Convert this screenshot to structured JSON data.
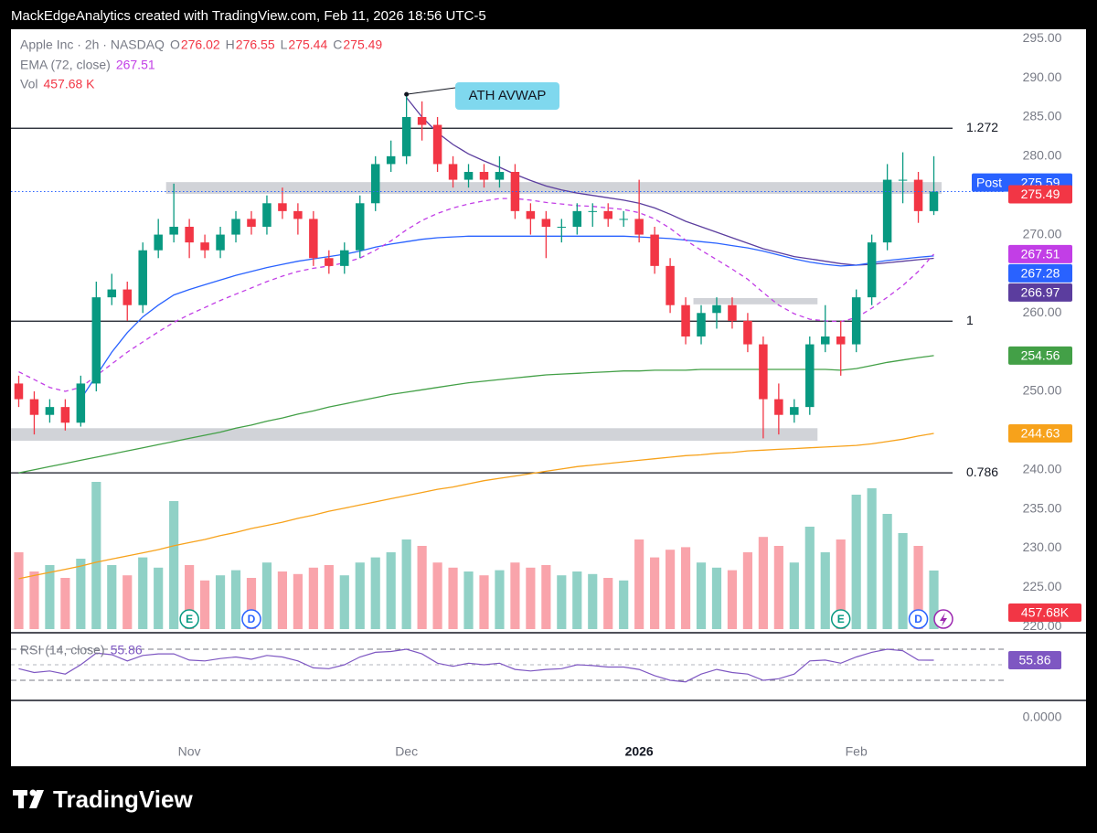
{
  "header": {
    "credit": "MackEdgeAnalytics created with TradingView.com, Feb 11, 2026 18:56 UTC-5"
  },
  "footer": {
    "brand": "TradingView"
  },
  "chart_data": {
    "type": "candlestick",
    "symbol": "Apple Inc · 2h · NASDAQ",
    "ohlc_legend": [
      {
        "name": "O",
        "value": 276.02
      },
      {
        "name": "H",
        "value": 276.55
      },
      {
        "name": "L",
        "value": 275.44
      },
      {
        "name": "C",
        "value": 275.49
      }
    ],
    "categories": [
      null,
      null,
      null,
      null,
      null,
      null,
      null,
      null,
      null,
      null,
      null,
      "Nov",
      null,
      null,
      null,
      null,
      null,
      null,
      null,
      null,
      null,
      null,
      null,
      null,
      null,
      "Dec",
      null,
      null,
      null,
      null,
      null,
      null,
      null,
      null,
      null,
      null,
      null,
      null,
      null,
      null,
      "2026",
      null,
      null,
      null,
      null,
      null,
      null,
      null,
      null,
      null,
      null,
      null,
      null,
      null,
      "Feb",
      null,
      null,
      null,
      null,
      null
    ],
    "open": [
      251,
      249,
      247,
      248,
      246,
      251,
      262,
      263,
      261,
      268,
      270,
      271,
      269,
      268,
      270,
      272,
      271,
      274,
      273,
      272,
      267,
      266,
      268,
      274,
      279,
      280,
      285,
      284,
      279,
      277,
      278,
      277,
      278,
      273,
      272,
      271,
      271,
      273,
      273,
      272,
      272,
      270,
      266,
      261,
      257,
      260,
      261,
      259,
      256,
      249,
      247,
      248,
      256,
      257,
      256,
      262,
      269,
      277,
      277,
      273
    ],
    "high": [
      252,
      250,
      249,
      249,
      252,
      264,
      265,
      264,
      269,
      272,
      276.5,
      272,
      270,
      271,
      273,
      273,
      275,
      276,
      274,
      273,
      268,
      269,
      275,
      280,
      282,
      287.9,
      287,
      285,
      280,
      279,
      279,
      280,
      279,
      274,
      273,
      272,
      274,
      274,
      274,
      273,
      277,
      271,
      267,
      262,
      261,
      262,
      262,
      260,
      257,
      251,
      249,
      257,
      261,
      259,
      263,
      270,
      279,
      280.5,
      278,
      280
    ],
    "low": [
      248,
      244.5,
      246,
      245,
      245.5,
      250,
      261,
      259,
      260,
      267,
      269,
      267,
      267,
      267,
      269,
      270,
      270,
      272,
      270,
      266,
      265,
      265,
      267,
      273,
      278,
      279,
      282,
      278,
      276,
      276,
      276,
      276,
      272,
      270,
      267,
      269,
      270,
      271,
      271,
      271,
      269,
      265,
      260,
      256,
      256,
      258,
      258,
      255,
      244,
      244.5,
      246,
      247,
      255,
      252,
      255,
      261,
      268,
      274,
      271.5,
      272.5
    ],
    "close": [
      249,
      247,
      248,
      246,
      251,
      262,
      263,
      261,
      268,
      270,
      271,
      269,
      268,
      270,
      272,
      271,
      274,
      273,
      272,
      267,
      266,
      268,
      274,
      279,
      280,
      285,
      284,
      279,
      277,
      278,
      277,
      278,
      273,
      272,
      271,
      271,
      273,
      273,
      272,
      272,
      270,
      266,
      261,
      257,
      260,
      261,
      259,
      256,
      249,
      247,
      248,
      256,
      257,
      256,
      262,
      269,
      277,
      277,
      273,
      275.49
    ],
    "up_color": "#089981",
    "down_color": "#f23645",
    "ylim": [
      219.2,
      296.2
    ],
    "yticks": [
      {
        "value": 295,
        "label": "295.00"
      },
      {
        "value": 290,
        "label": "290.00"
      },
      {
        "value": 285,
        "label": "285.00"
      },
      {
        "value": 280,
        "label": "280.00"
      },
      {
        "value": 275,
        "label": "275.00"
      },
      {
        "value": 270,
        "label": "270.00"
      },
      {
        "value": 265,
        "label": "265.00"
      },
      {
        "value": 260,
        "label": "260.00"
      },
      {
        "value": 255,
        "label": "255.00"
      },
      {
        "value": 250,
        "label": "250.00"
      },
      {
        "value": 245,
        "label": "245.00"
      },
      {
        "value": 240,
        "label": "240.00"
      },
      {
        "value": 235,
        "label": "235.00"
      },
      {
        "value": 230,
        "label": "230.00"
      },
      {
        "value": 225,
        "label": "225.00"
      },
      {
        "value": 220,
        "label": "220.00"
      }
    ],
    "lines": [
      {
        "name": "EMA (72, close)",
        "color": "#c23ee6",
        "dash": true,
        "values": [
          252.5,
          251.5,
          250.5,
          250,
          250.5,
          252,
          253.5,
          255,
          256.3,
          257.6,
          258.8,
          259.8,
          260.7,
          261.6,
          262.4,
          263.2,
          264,
          264.7,
          265.3,
          265.7,
          266,
          266.4,
          267,
          268,
          269.2,
          270.6,
          271.8,
          272.7,
          273.4,
          273.9,
          274.3,
          274.6,
          274.6,
          274.4,
          274.1,
          273.9,
          273.7,
          273.6,
          273.4,
          273.2,
          272.8,
          272,
          270.8,
          269.3,
          268,
          266.8,
          265.6,
          264.3,
          262.6,
          261,
          259.9,
          259.2,
          259,
          258.9,
          259.4,
          260.6,
          262,
          263.5,
          265.3,
          267.51
        ]
      },
      {
        "color": "#2962ff",
        "dash": false,
        "values": [
          null,
          null,
          null,
          null,
          249,
          252,
          255,
          257.5,
          259.5,
          261,
          262.3,
          263,
          263.6,
          264.2,
          264.8,
          265.3,
          265.8,
          266.2,
          266.6,
          266.9,
          267.2,
          267.5,
          267.9,
          268.4,
          268.8,
          269.1,
          269.4,
          269.6,
          269.7,
          269.8,
          269.8,
          269.8,
          269.8,
          269.8,
          269.8,
          269.8,
          269.8,
          269.8,
          269.8,
          269.8,
          269.7,
          269.6,
          269.5,
          269.3,
          269.1,
          268.9,
          268.6,
          268.3,
          267.9,
          267.4,
          266.9,
          266.5,
          266.2,
          266,
          266.1,
          266.4,
          266.7,
          266.9,
          267.1,
          267.28
        ]
      },
      {
        "color": "#5b3d9e",
        "dash": false,
        "values": [
          null,
          null,
          null,
          null,
          null,
          null,
          null,
          null,
          null,
          null,
          null,
          null,
          null,
          null,
          null,
          null,
          null,
          null,
          null,
          null,
          null,
          null,
          null,
          null,
          null,
          287.5,
          285,
          283,
          281.5,
          280.3,
          279.4,
          278.6,
          277.7,
          276.9,
          276.2,
          275.7,
          275.3,
          275,
          274.7,
          274.4,
          274,
          273.4,
          272.6,
          271.7,
          271,
          270.3,
          269.6,
          268.9,
          268.2,
          267.7,
          267.2,
          266.9,
          266.6,
          266.3,
          266.1,
          266.2,
          266.4,
          266.6,
          266.8,
          266.97
        ]
      },
      {
        "color": "#43a047",
        "dash": false,
        "values": [
          239.6,
          240,
          240.4,
          240.8,
          241.2,
          241.6,
          242,
          242.4,
          242.8,
          243.2,
          243.6,
          244,
          244.4,
          244.8,
          245.3,
          245.7,
          246.2,
          246.6,
          247.1,
          247.5,
          248,
          248.4,
          248.8,
          249.2,
          249.6,
          249.9,
          250.2,
          250.5,
          250.8,
          251.1,
          251.3,
          251.5,
          251.7,
          251.9,
          252.1,
          252.2,
          252.3,
          252.4,
          252.5,
          252.6,
          252.6,
          252.7,
          252.7,
          252.7,
          252.8,
          252.8,
          252.8,
          252.8,
          252.8,
          252.8,
          252.8,
          252.8,
          252.8,
          252.7,
          252.9,
          253.3,
          253.7,
          254,
          254.3,
          254.56
        ]
      },
      {
        "color": "#f7a21b",
        "dash": false,
        "values": [
          226.1,
          226.5,
          226.9,
          227.3,
          227.7,
          228.2,
          228.6,
          229,
          229.4,
          229.8,
          230.3,
          230.7,
          231.1,
          231.6,
          232,
          232.5,
          232.9,
          233.3,
          233.8,
          234.2,
          234.7,
          235.1,
          235.5,
          235.9,
          236.3,
          236.7,
          237.1,
          237.5,
          237.8,
          238.2,
          238.6,
          238.9,
          239.2,
          239.5,
          239.8,
          240.1,
          240.4,
          240.6,
          240.8,
          241,
          241.2,
          241.4,
          241.6,
          241.8,
          241.9,
          242.1,
          242.2,
          242.4,
          242.5,
          242.6,
          242.7,
          242.8,
          242.9,
          243,
          243.1,
          243.3,
          243.6,
          243.9,
          244.3,
          244.63
        ]
      }
    ],
    "volume": {
      "name": "Vol",
      "legend_label": "457.68 K",
      "axis_label": "457.68K",
      "values": [
        600,
        450,
        500,
        400,
        550,
        1150,
        500,
        420,
        560,
        480,
        1000,
        500,
        380,
        420,
        460,
        400,
        520,
        450,
        430,
        480,
        500,
        420,
        520,
        560,
        600,
        700,
        650,
        520,
        480,
        450,
        420,
        460,
        520,
        480,
        500,
        420,
        450,
        430,
        400,
        380,
        700,
        560,
        620,
        640,
        520,
        480,
        460,
        600,
        720,
        650,
        520,
        800,
        600,
        700,
        1050,
        1100,
        900,
        750,
        650,
        457.68
      ]
    },
    "rsi": {
      "name": "RSI (14, close)",
      "color": "#7e57c2",
      "values": [
        45,
        40,
        42,
        38,
        50,
        65,
        63,
        55,
        62,
        64,
        64,
        56,
        55,
        58,
        60,
        57,
        62,
        60,
        55,
        46,
        45,
        50,
        60,
        66,
        67,
        70,
        64,
        52,
        48,
        52,
        50,
        52,
        44,
        42,
        44,
        45,
        50,
        49,
        47,
        47,
        44,
        36,
        30,
        28,
        38,
        44,
        40,
        38,
        30,
        32,
        38,
        55,
        56,
        52,
        60,
        66,
        70,
        68,
        56,
        55.86
      ]
    },
    "fib_levels": [
      {
        "value": 283.57,
        "label": "1.272"
      },
      {
        "value": 258.95,
        "label": "1"
      },
      {
        "value": 239.6,
        "label": "0.786"
      }
    ],
    "zones": [
      {
        "low": 275.2,
        "high": 276.7,
        "start": 10,
        "end": 59
      },
      {
        "low": 261.1,
        "high": 261.9,
        "start": 44,
        "end": 51
      },
      {
        "low": 243.7,
        "high": 245.3,
        "start": 0,
        "end": 51
      }
    ],
    "post": {
      "label": "Post",
      "value": 275.59
    },
    "annotation": {
      "text": "ATH AVWAP",
      "at": 25,
      "price": 287.9
    },
    "events": [
      {
        "label": "E",
        "at": 11
      },
      {
        "label": "D",
        "at": 15
      },
      {
        "label": "E",
        "at": 53
      },
      {
        "label": "D",
        "at": 58
      }
    ],
    "lower_pane_tick": {
      "value": 0,
      "label": "0.0000"
    }
  }
}
